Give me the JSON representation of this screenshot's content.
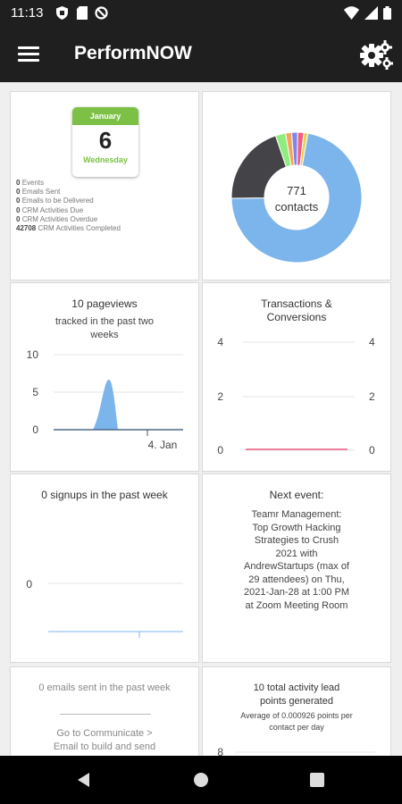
{
  "status_bar": {
    "time": "11:13"
  },
  "app_bar": {
    "title": "PerformNOW"
  },
  "calendar_card": {
    "month": "January",
    "day": "6",
    "weekday": "Wednesday",
    "stats": [
      {
        "value": "0",
        "label": "Events"
      },
      {
        "value": "0",
        "label": "Emails Sent"
      },
      {
        "value": "0",
        "label": "Emails to be Delivered"
      },
      {
        "value": "0",
        "label": "CRM Activities Due"
      },
      {
        "value": "0",
        "label": "CRM Activities Overdue"
      },
      {
        "value": "42708",
        "label": "CRM Activities Completed"
      }
    ]
  },
  "contacts_card": {
    "count": "771",
    "label": "contacts",
    "colors": [
      "#7cb5ec",
      "#434348",
      "#90ed7d",
      "#f7a35c",
      "#8085e9",
      "#f15c80",
      "#e4d354"
    ],
    "slices": [
      0.72,
      0.2,
      0.025,
      0.015,
      0.015,
      0.015,
      0.01
    ]
  },
  "pageviews_card": {
    "title": "10 pageviews",
    "subtitle": "tracked in the past two weeks",
    "chart_data": {
      "type": "area",
      "y_ticks": [
        "10",
        "5",
        "0"
      ],
      "ylim": [
        0,
        10
      ],
      "x_tick": "4. Jan",
      "color": "#7cb5ec"
    }
  },
  "transactions_card": {
    "title": "Transactions & Conversions",
    "chart_data": {
      "type": "line",
      "y_ticks_left": [
        "4",
        "2",
        "0"
      ],
      "y_ticks_right": [
        "4",
        "2",
        "0"
      ],
      "ylim": [
        0,
        4
      ],
      "color": "#f15c80"
    }
  },
  "signups_card": {
    "title": "0 signups in the past week",
    "chart_data": {
      "type": "bar",
      "y_ticks": [
        "0"
      ]
    }
  },
  "event_card": {
    "title": "Next event:",
    "lines": [
      "Teamr Management:",
      "Top Growth Hacking",
      "Strategies to Crush",
      "2021 with",
      "AndrewStartups (max of",
      "29 attendees) on Thu,",
      "2021-Jan-28 at 1:00 PM",
      "at Zoom Meeting Room"
    ]
  },
  "emails_card": {
    "title": "0 emails sent in the past week",
    "note_lines": [
      "Go to Communicate >",
      "Email to build and send"
    ]
  },
  "activity_card": {
    "title": "10 total activity lead points generated",
    "subtitle": "Average of 0.000926 points per contact per day",
    "y_tick": "8"
  }
}
